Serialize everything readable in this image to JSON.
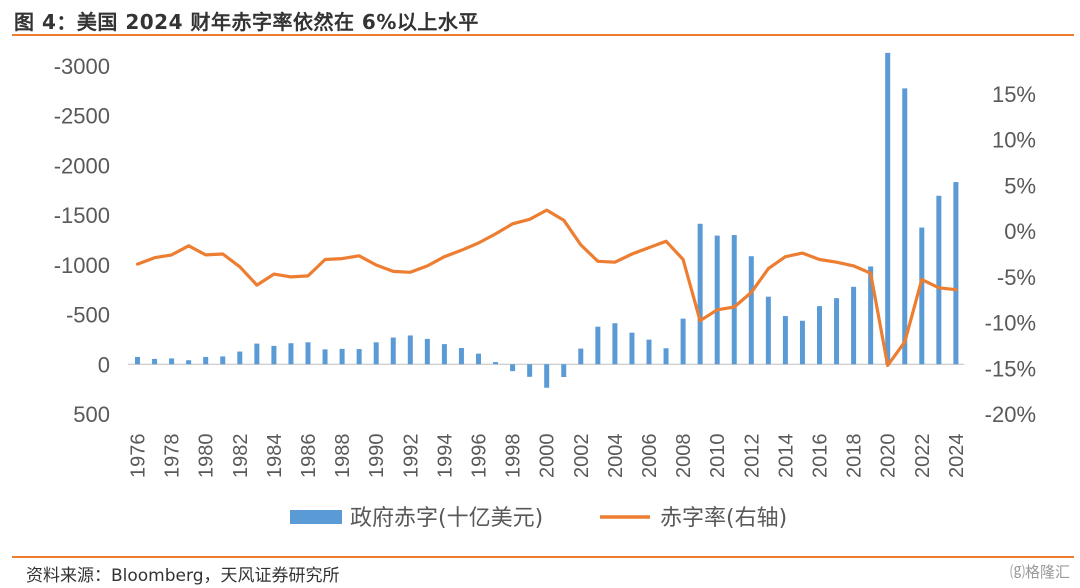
{
  "header": {
    "title": "图 4：美国 2024 财年赤字率依然在 6%以上水平"
  },
  "footer": {
    "source": "资料来源：Bloomberg，天风证券研究所",
    "watermark": "⒢格隆汇"
  },
  "colors": {
    "bars": "#5B9BD5",
    "line": "#ED7D31",
    "rule": "#ED7D31"
  },
  "chart_data": {
    "type": "bar+line",
    "x": [
      1976,
      1977,
      1978,
      1979,
      1980,
      1981,
      1982,
      1983,
      1984,
      1985,
      1986,
      1987,
      1988,
      1989,
      1990,
      1991,
      1992,
      1993,
      1994,
      1995,
      1996,
      1997,
      1998,
      1999,
      2000,
      2001,
      2002,
      2003,
      2004,
      2005,
      2006,
      2007,
      2008,
      2009,
      2010,
      2011,
      2012,
      2013,
      2014,
      2015,
      2016,
      2017,
      2018,
      2019,
      2020,
      2021,
      2022,
      2023,
      2024
    ],
    "x_tick_labels": [
      "1976",
      "1978",
      "1980",
      "1982",
      "1984",
      "1986",
      "1988",
      "1990",
      "1992",
      "1994",
      "1996",
      "1998",
      "2000",
      "2002",
      "2004",
      "2006",
      "2008",
      "2010",
      "2012",
      "2014",
      "2016",
      "2018",
      "2020",
      "2022",
      "2024"
    ],
    "y_left": {
      "ylim": [
        500,
        -3000
      ],
      "ticks": [
        -3000,
        -2500,
        -2000,
        -1500,
        -1000,
        -500,
        0,
        500
      ],
      "tick_labels": [
        "-3000",
        "-2500",
        "-2000",
        "-1500",
        "-1000",
        "-500",
        "0",
        "500"
      ]
    },
    "y_right": {
      "ylim": [
        -20,
        15
      ],
      "ticks": [
        15,
        10,
        5,
        0,
        -5,
        -10,
        -15,
        -20
      ],
      "tick_labels": [
        "15%",
        "10%",
        "5%",
        "0%",
        "-5%",
        "-10%",
        "-15%",
        "-20%"
      ]
    },
    "series": [
      {
        "name": "政府赤字(十亿美元)",
        "type": "bar",
        "axis": "left",
        "values": [
          -74,
          -54,
          -59,
          -41,
          -74,
          -79,
          -128,
          -208,
          -185,
          -212,
          -221,
          -150,
          -155,
          -153,
          -221,
          -269,
          -290,
          -255,
          -203,
          -164,
          -107,
          -22,
          69,
          126,
          236,
          128,
          -158,
          -378,
          -413,
          -318,
          -248,
          -161,
          -459,
          -1413,
          -1294,
          -1300,
          -1087,
          -680,
          -485,
          -438,
          -585,
          -665,
          -779,
          -984,
          -3132,
          -2775,
          -1375,
          -1695,
          -1833
        ]
      },
      {
        "name": "赤字率(右轴)",
        "type": "line",
        "axis": "right",
        "values": [
          -3.6,
          -2.9,
          -2.6,
          -1.6,
          -2.6,
          -2.5,
          -3.9,
          -5.9,
          -4.7,
          -5.0,
          -4.9,
          -3.1,
          -3.0,
          -2.7,
          -3.7,
          -4.4,
          -4.5,
          -3.8,
          -2.8,
          -2.1,
          -1.3,
          -0.3,
          0.8,
          1.3,
          2.3,
          1.2,
          -1.5,
          -3.3,
          -3.4,
          -2.5,
          -1.8,
          -1.1,
          -3.1,
          -9.8,
          -8.6,
          -8.3,
          -6.7,
          -4.1,
          -2.8,
          -2.4,
          -3.1,
          -3.4,
          -3.8,
          -4.6,
          -14.7,
          -12.1,
          -5.3,
          -6.2,
          -6.4
        ]
      }
    ],
    "legend": {
      "placement": "bottom-center",
      "items": [
        "政府赤字(十亿美元)",
        "赤字率(右轴)"
      ]
    }
  }
}
